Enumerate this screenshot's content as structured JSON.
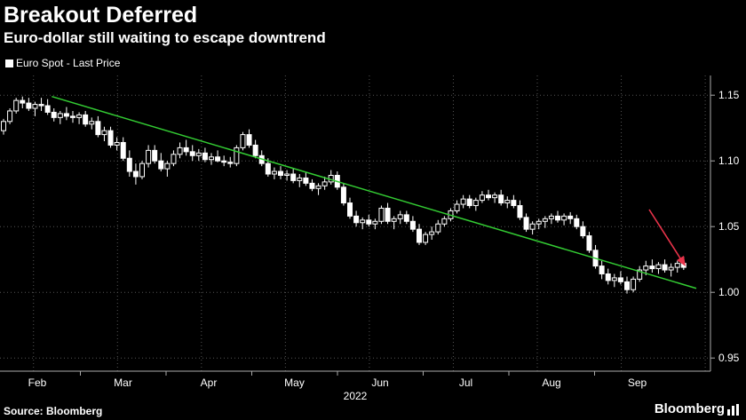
{
  "chart_data": {
    "type": "candlestick",
    "title": "Breakout Deferred",
    "subtitle": "Euro-dollar still waiting to escape downtrend",
    "legend": [
      {
        "name": "Euro Spot - Last Price",
        "color": "#ffffff"
      }
    ],
    "source": "Source: Bloomberg",
    "brand": "Bloomberg",
    "x_ticks": [
      "Feb",
      "Mar",
      "Apr",
      "May",
      "Jun",
      "Jul",
      "Aug",
      "Sep"
    ],
    "x_year": "2022",
    "y_ticks": [
      "0.95",
      "1.00",
      "1.05",
      "1.10",
      "1.15"
    ],
    "y_tick_values": [
      0.95,
      1.0,
      1.05,
      1.1,
      1.15
    ],
    "ylim": [
      0.94,
      1.165
    ],
    "x_range": [
      0,
      33
    ],
    "trendline": {
      "x": [
        2.3,
        33
      ],
      "y": [
        1.149,
        1.003
      ],
      "color": "#33cc33"
    },
    "annotation": {
      "type": "arrow",
      "color": "#e8334a"
    },
    "candles": [
      [
        0,
        1.123,
        1.132,
        1.12,
        1.13
      ],
      [
        0.3,
        1.13,
        1.14,
        1.128,
        1.138
      ],
      [
        0.6,
        1.138,
        1.148,
        1.136,
        1.146
      ],
      [
        0.9,
        1.146,
        1.149,
        1.14,
        1.144
      ],
      [
        1.2,
        1.144,
        1.148,
        1.138,
        1.14
      ],
      [
        1.5,
        1.14,
        1.145,
        1.134,
        1.143
      ],
      [
        1.8,
        1.143,
        1.148,
        1.138,
        1.142
      ],
      [
        2.1,
        1.142,
        1.147,
        1.135,
        1.137
      ],
      [
        2.4,
        1.137,
        1.14,
        1.13,
        1.133
      ],
      [
        2.7,
        1.133,
        1.138,
        1.128,
        1.136
      ],
      [
        3.0,
        1.136,
        1.141,
        1.131,
        1.134
      ],
      [
        3.3,
        1.134,
        1.138,
        1.129,
        1.133
      ],
      [
        3.6,
        1.133,
        1.137,
        1.128,
        1.135
      ],
      [
        3.9,
        1.135,
        1.138,
        1.126,
        1.128
      ],
      [
        4.2,
        1.128,
        1.133,
        1.124,
        1.13
      ],
      [
        4.5,
        1.13,
        1.134,
        1.118,
        1.12
      ],
      [
        4.8,
        1.12,
        1.126,
        1.115,
        1.123
      ],
      [
        5.1,
        1.123,
        1.126,
        1.11,
        1.112
      ],
      [
        5.4,
        1.112,
        1.118,
        1.108,
        1.114
      ],
      [
        5.7,
        1.114,
        1.118,
        1.1,
        1.102
      ],
      [
        6.0,
        1.102,
        1.108,
        1.088,
        1.092
      ],
      [
        6.3,
        1.092,
        1.098,
        1.082,
        1.088
      ],
      [
        6.6,
        1.088,
        1.1,
        1.086,
        1.098
      ],
      [
        6.9,
        1.098,
        1.112,
        1.095,
        1.108
      ],
      [
        7.2,
        1.108,
        1.112,
        1.098,
        1.1
      ],
      [
        7.5,
        1.1,
        1.106,
        1.092,
        1.094
      ],
      [
        7.8,
        1.094,
        1.1,
        1.088,
        1.098
      ],
      [
        8.1,
        1.098,
        1.108,
        1.096,
        1.105
      ],
      [
        8.4,
        1.105,
        1.114,
        1.102,
        1.11
      ],
      [
        8.7,
        1.11,
        1.116,
        1.104,
        1.107
      ],
      [
        9.0,
        1.107,
        1.112,
        1.1,
        1.104
      ],
      [
        9.3,
        1.104,
        1.109,
        1.1,
        1.106
      ],
      [
        9.6,
        1.106,
        1.11,
        1.099,
        1.101
      ],
      [
        9.9,
        1.101,
        1.106,
        1.097,
        1.103
      ],
      [
        10.2,
        1.103,
        1.108,
        1.099,
        1.1
      ],
      [
        10.5,
        1.1,
        1.104,
        1.096,
        1.099
      ],
      [
        10.8,
        1.099,
        1.103,
        1.095,
        1.098
      ],
      [
        11.1,
        1.098,
        1.112,
        1.096,
        1.11
      ],
      [
        11.4,
        1.11,
        1.122,
        1.108,
        1.12
      ],
      [
        11.7,
        1.12,
        1.124,
        1.11,
        1.112
      ],
      [
        12.0,
        1.112,
        1.116,
        1.102,
        1.104
      ],
      [
        12.3,
        1.104,
        1.108,
        1.096,
        1.098
      ],
      [
        12.6,
        1.098,
        1.102,
        1.088,
        1.09
      ],
      [
        12.9,
        1.09,
        1.095,
        1.086,
        1.092
      ],
      [
        13.2,
        1.092,
        1.096,
        1.086,
        1.089
      ],
      [
        13.5,
        1.089,
        1.093,
        1.085,
        1.09
      ],
      [
        13.8,
        1.09,
        1.094,
        1.083,
        1.085
      ],
      [
        14.1,
        1.085,
        1.09,
        1.08,
        1.087
      ],
      [
        14.4,
        1.087,
        1.091,
        1.081,
        1.083
      ],
      [
        14.7,
        1.083,
        1.086,
        1.077,
        1.079
      ],
      [
        15.0,
        1.079,
        1.083,
        1.074,
        1.081
      ],
      [
        15.3,
        1.081,
        1.088,
        1.078,
        1.084
      ],
      [
        15.6,
        1.084,
        1.093,
        1.082,
        1.089
      ],
      [
        15.9,
        1.089,
        1.092,
        1.078,
        1.08
      ],
      [
        16.2,
        1.08,
        1.083,
        1.066,
        1.068
      ],
      [
        16.5,
        1.068,
        1.072,
        1.056,
        1.058
      ],
      [
        16.8,
        1.058,
        1.062,
        1.05,
        1.053
      ],
      [
        17.1,
        1.053,
        1.057,
        1.048,
        1.055
      ],
      [
        17.4,
        1.055,
        1.059,
        1.05,
        1.052
      ],
      [
        17.7,
        1.052,
        1.056,
        1.048,
        1.054
      ],
      [
        18.0,
        1.054,
        1.066,
        1.052,
        1.064
      ],
      [
        18.3,
        1.064,
        1.068,
        1.052,
        1.054
      ],
      [
        18.6,
        1.054,
        1.058,
        1.048,
        1.056
      ],
      [
        18.9,
        1.056,
        1.062,
        1.052,
        1.059
      ],
      [
        19.2,
        1.059,
        1.062,
        1.052,
        1.054
      ],
      [
        19.5,
        1.054,
        1.058,
        1.046,
        1.048
      ],
      [
        19.8,
        1.048,
        1.052,
        1.036,
        1.038
      ],
      [
        20.1,
        1.038,
        1.046,
        1.036,
        1.044
      ],
      [
        20.4,
        1.044,
        1.05,
        1.04,
        1.046
      ],
      [
        20.7,
        1.046,
        1.055,
        1.044,
        1.052
      ],
      [
        21.0,
        1.052,
        1.058,
        1.05,
        1.056
      ],
      [
        21.3,
        1.056,
        1.064,
        1.054,
        1.062
      ],
      [
        21.6,
        1.062,
        1.07,
        1.06,
        1.067
      ],
      [
        21.9,
        1.067,
        1.074,
        1.064,
        1.071
      ],
      [
        22.2,
        1.071,
        1.074,
        1.064,
        1.066
      ],
      [
        22.5,
        1.066,
        1.072,
        1.062,
        1.07
      ],
      [
        22.8,
        1.07,
        1.077,
        1.068,
        1.074
      ],
      [
        23.1,
        1.074,
        1.078,
        1.07,
        1.072
      ],
      [
        23.4,
        1.072,
        1.076,
        1.068,
        1.074
      ],
      [
        23.7,
        1.074,
        1.078,
        1.066,
        1.068
      ],
      [
        24.0,
        1.068,
        1.073,
        1.064,
        1.07
      ],
      [
        24.3,
        1.07,
        1.074,
        1.064,
        1.066
      ],
      [
        24.6,
        1.066,
        1.07,
        1.055,
        1.057
      ],
      [
        24.9,
        1.057,
        1.06,
        1.046,
        1.048
      ],
      [
        25.2,
        1.048,
        1.054,
        1.044,
        1.052
      ],
      [
        25.5,
        1.052,
        1.056,
        1.048,
        1.054
      ],
      [
        25.8,
        1.054,
        1.058,
        1.049,
        1.056
      ],
      [
        26.1,
        1.056,
        1.06,
        1.052,
        1.058
      ],
      [
        26.4,
        1.058,
        1.062,
        1.053,
        1.055
      ],
      [
        26.7,
        1.055,
        1.06,
        1.051,
        1.058
      ],
      [
        27.0,
        1.058,
        1.061,
        1.052,
        1.056
      ],
      [
        27.3,
        1.056,
        1.059,
        1.048,
        1.05
      ],
      [
        27.6,
        1.05,
        1.054,
        1.041,
        1.043
      ],
      [
        27.9,
        1.043,
        1.046,
        1.03,
        1.032
      ],
      [
        28.2,
        1.032,
        1.036,
        1.018,
        1.02
      ],
      [
        28.5,
        1.02,
        1.024,
        1.01,
        1.014
      ],
      [
        28.8,
        1.014,
        1.018,
        1.006,
        1.009
      ],
      [
        29.1,
        1.009,
        1.014,
        1.004,
        1.011
      ],
      [
        29.4,
        1.011,
        1.016,
        1.006,
        1.008
      ],
      [
        29.7,
        1.008,
        1.012,
        0.999,
        1.002
      ],
      [
        30.0,
        1.002,
        1.012,
        1.0,
        1.01
      ],
      [
        30.3,
        1.01,
        1.02,
        1.008,
        1.017
      ],
      [
        30.6,
        1.017,
        1.024,
        1.013,
        1.02
      ],
      [
        30.9,
        1.02,
        1.025,
        1.015,
        1.018
      ],
      [
        31.2,
        1.018,
        1.023,
        1.014,
        1.021
      ],
      [
        31.5,
        1.021,
        1.025,
        1.015,
        1.017
      ],
      [
        31.8,
        1.017,
        1.022,
        1.012,
        1.019
      ],
      [
        32.1,
        1.019,
        1.024,
        1.015,
        1.022
      ],
      [
        32.4,
        1.022,
        1.027,
        1.017,
        1.019
      ]
    ]
  }
}
